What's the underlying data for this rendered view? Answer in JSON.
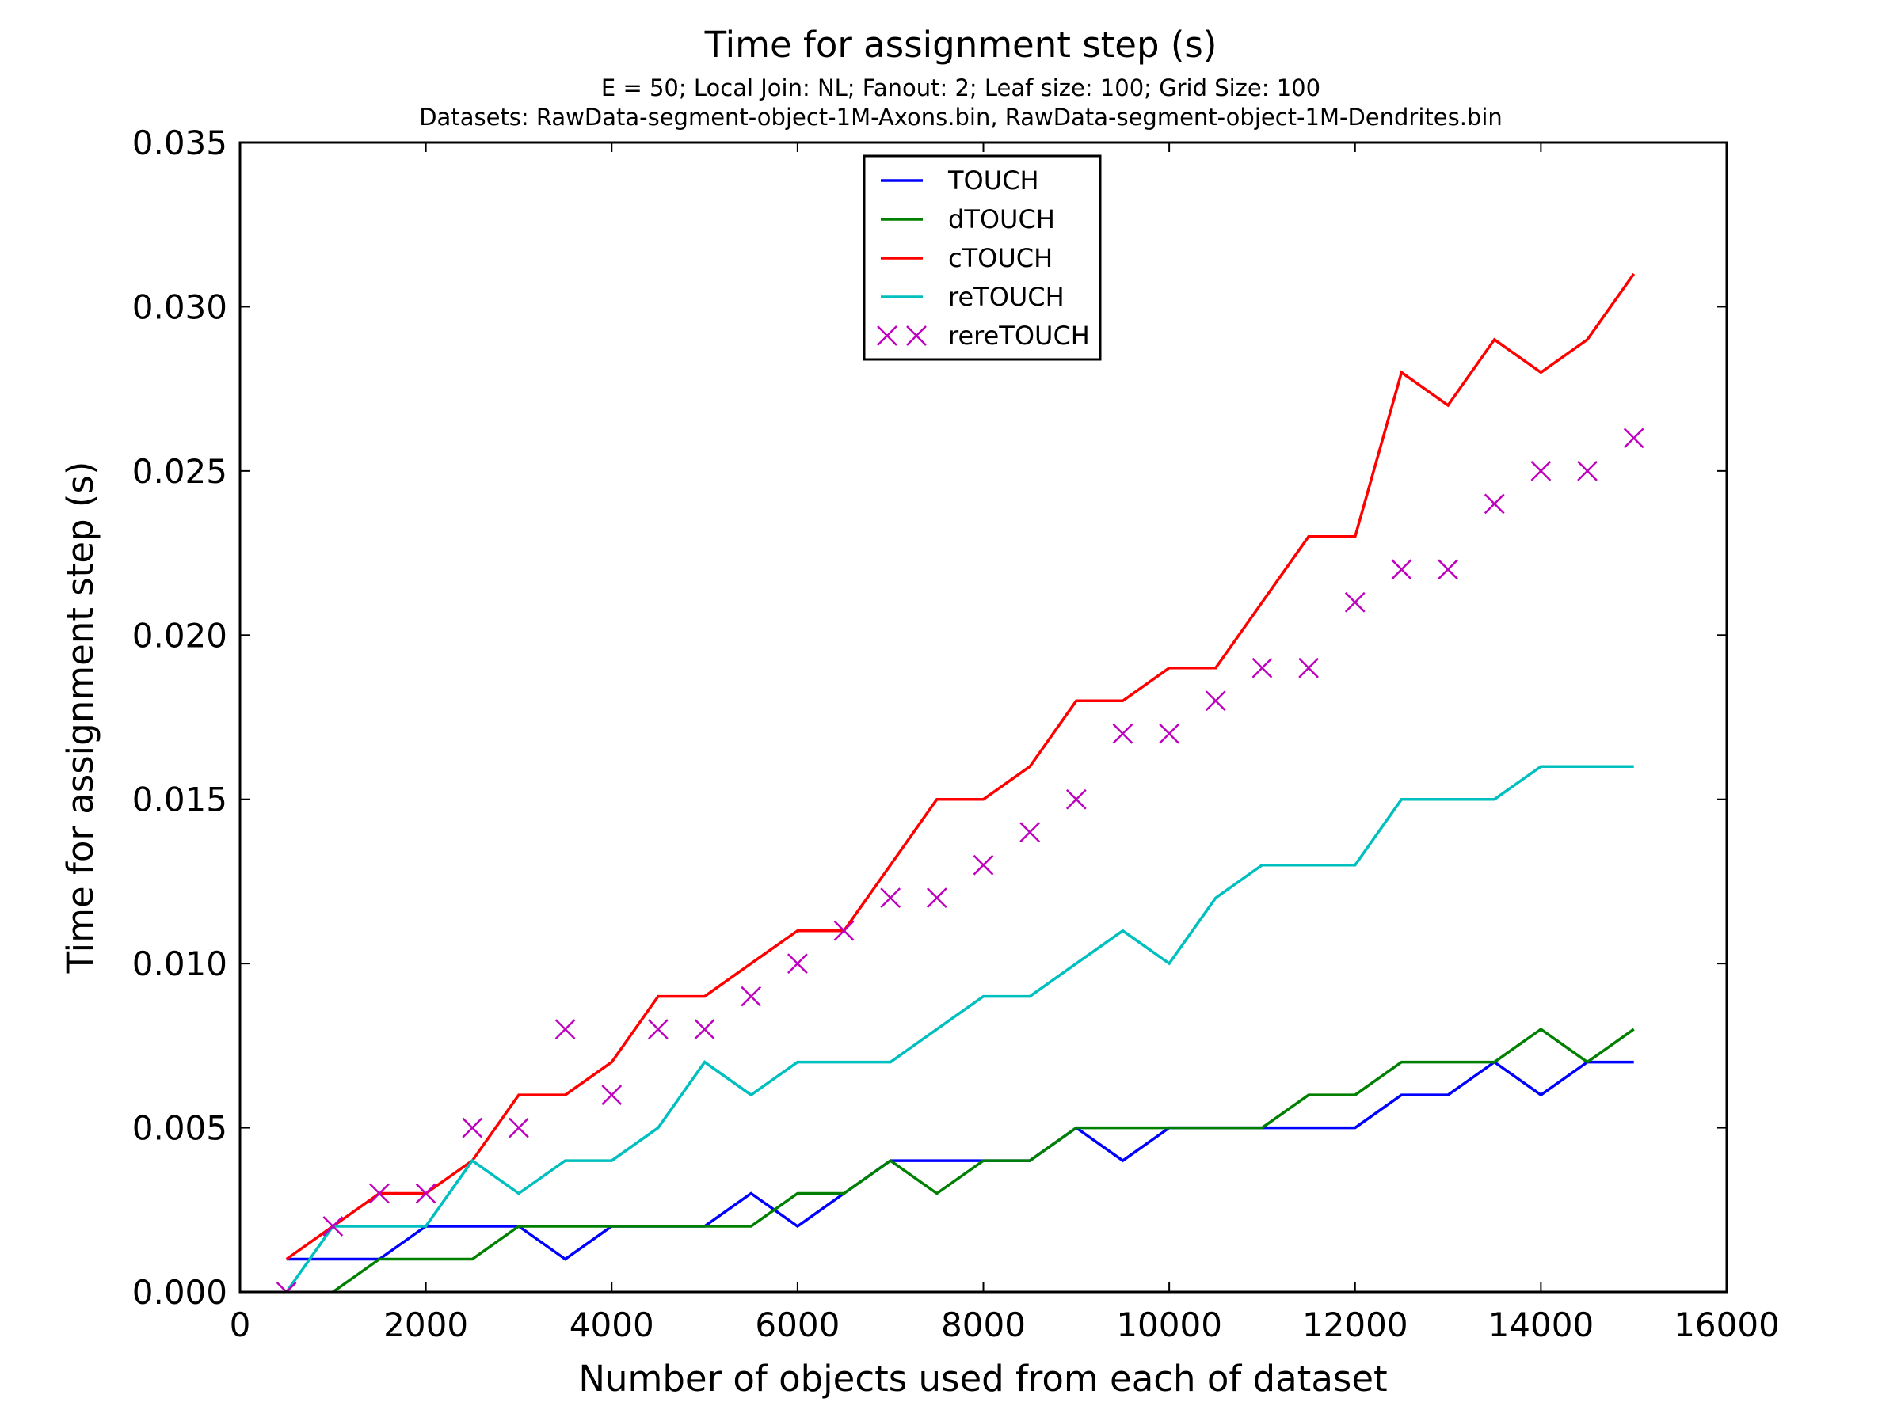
{
  "chart_data": {
    "type": "line",
    "title": "Time for assignment step (s)",
    "subtitle_lines": [
      "E = 50; Local Join: NL; Fanout: 2; Leaf size: 100; Grid Size: 100",
      "Datasets: RawData-segment-object-1M-Axons.bin, RawData-segment-object-1M-Dendrites.bin"
    ],
    "xlabel": "Number of objects used from each of dataset",
    "ylabel": "Time for assignment step (s)",
    "xlim": [
      0,
      16000
    ],
    "ylim": [
      0,
      0.035
    ],
    "xticks": [
      0,
      2000,
      4000,
      6000,
      8000,
      10000,
      12000,
      14000,
      16000
    ],
    "yticks": [
      0,
      0.005,
      0.01,
      0.015,
      0.02,
      0.025,
      0.03,
      0.035
    ],
    "xtick_labels": [
      "0",
      "2000",
      "4000",
      "6000",
      "8000",
      "10000",
      "12000",
      "14000",
      "16000"
    ],
    "ytick_labels": [
      "0.000",
      "0.005",
      "0.010",
      "0.015",
      "0.020",
      "0.025",
      "0.030",
      "0.035"
    ],
    "grid": false,
    "legend_position": "top-center",
    "x": [
      500,
      1000,
      1500,
      2000,
      2500,
      3000,
      3500,
      4000,
      4500,
      5000,
      5500,
      6000,
      6500,
      7000,
      7500,
      8000,
      8500,
      9000,
      9500,
      10000,
      10500,
      11000,
      11500,
      12000,
      12500,
      13000,
      13500,
      14000,
      14500,
      15000
    ],
    "series": [
      {
        "name": "TOUCH",
        "style": "line",
        "color": "#0000ff",
        "values": [
          0.001,
          0.001,
          0.001,
          0.002,
          0.002,
          0.002,
          0.001,
          0.002,
          0.002,
          0.002,
          0.003,
          0.002,
          0.003,
          0.004,
          0.004,
          0.004,
          0.004,
          0.005,
          0.004,
          0.005,
          0.005,
          0.005,
          0.005,
          0.005,
          0.006,
          0.006,
          0.007,
          0.006,
          0.007,
          0.007
        ]
      },
      {
        "name": "dTOUCH",
        "style": "line",
        "color": "#008000",
        "values": [
          -0.001,
          0.0,
          0.001,
          0.001,
          0.001,
          0.002,
          0.002,
          0.002,
          0.002,
          0.002,
          0.002,
          0.003,
          0.003,
          0.004,
          0.003,
          0.004,
          0.004,
          0.005,
          0.005,
          0.005,
          0.005,
          0.005,
          0.006,
          0.006,
          0.007,
          0.007,
          0.007,
          0.008,
          0.007,
          0.008
        ]
      },
      {
        "name": "cTOUCH",
        "style": "line",
        "color": "#ff0000",
        "values": [
          0.001,
          0.002,
          0.003,
          0.003,
          0.004,
          0.006,
          0.006,
          0.007,
          0.009,
          0.009,
          0.01,
          0.011,
          0.011,
          0.013,
          0.015,
          0.015,
          0.016,
          0.018,
          0.018,
          0.019,
          0.019,
          0.021,
          0.023,
          0.023,
          0.028,
          0.027,
          0.029,
          0.028,
          0.029,
          0.031
        ]
      },
      {
        "name": "reTOUCH",
        "style": "line",
        "color": "#00bfbf",
        "values": [
          0.0,
          0.002,
          0.002,
          0.002,
          0.004,
          0.003,
          0.004,
          0.004,
          0.005,
          0.007,
          0.006,
          0.007,
          0.007,
          0.007,
          0.008,
          0.009,
          0.009,
          0.01,
          0.011,
          0.01,
          0.012,
          0.013,
          0.013,
          0.013,
          0.015,
          0.015,
          0.015,
          0.016,
          0.016,
          0.016
        ]
      },
      {
        "name": "rereTOUCH",
        "style": "x-marker",
        "color": "#bf00bf",
        "values": [
          0.0,
          0.002,
          0.003,
          0.003,
          0.005,
          0.005,
          0.008,
          0.006,
          0.008,
          0.008,
          0.009,
          0.01,
          0.011,
          0.012,
          0.012,
          0.013,
          0.014,
          0.015,
          0.017,
          0.017,
          0.018,
          0.019,
          0.019,
          0.021,
          0.022,
          0.022,
          0.024,
          0.025,
          0.025,
          0.026
        ]
      }
    ]
  }
}
